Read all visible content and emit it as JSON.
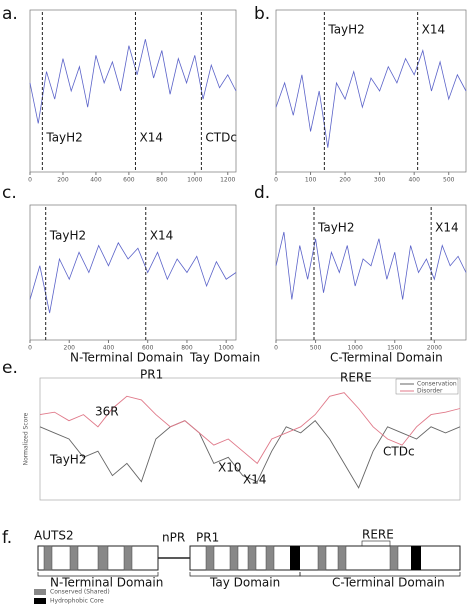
{
  "chart_data": [
    {
      "type": "line",
      "panel": "a.",
      "x": [
        0,
        50,
        100,
        150,
        200,
        250,
        300,
        350,
        400,
        450,
        500,
        550,
        600,
        650,
        700,
        750,
        800,
        850,
        900,
        950,
        1000,
        1050,
        1100,
        1150,
        1200,
        1250
      ],
      "xlim": [
        0,
        1250
      ],
      "xticks": [
        0,
        200,
        400,
        600,
        800,
        1000,
        1200
      ],
      "ylim": [
        0,
        1
      ],
      "series": [
        {
          "color": "#5b63c9",
          "values": [
            0.55,
            0.3,
            0.62,
            0.45,
            0.7,
            0.5,
            0.65,
            0.4,
            0.72,
            0.55,
            0.68,
            0.5,
            0.78,
            0.6,
            0.82,
            0.58,
            0.75,
            0.48,
            0.7,
            0.55,
            0.72,
            0.45,
            0.66,
            0.52,
            0.6,
            0.5
          ]
        }
      ],
      "markers": [
        {
          "label": "TayH2",
          "x": 75
        },
        {
          "label": "X14",
          "x": 640
        },
        {
          "label": "CTDc",
          "x": 1040
        }
      ]
    },
    {
      "type": "line",
      "panel": "b.",
      "x": [
        0,
        25,
        50,
        75,
        100,
        125,
        150,
        175,
        200,
        225,
        250,
        275,
        300,
        325,
        350,
        375,
        400,
        425,
        450,
        475,
        500,
        525,
        550
      ],
      "xlim": [
        0,
        550
      ],
      "xticks": [
        0,
        100,
        200,
        300,
        400,
        500
      ],
      "ylim": [
        0,
        1
      ],
      "series": [
        {
          "color": "#5b63c9",
          "values": [
            0.4,
            0.55,
            0.35,
            0.6,
            0.25,
            0.5,
            0.15,
            0.55,
            0.45,
            0.62,
            0.4,
            0.58,
            0.5,
            0.65,
            0.55,
            0.7,
            0.6,
            0.75,
            0.5,
            0.68,
            0.45,
            0.6,
            0.5
          ]
        }
      ],
      "markers": [
        {
          "label": "TayH2",
          "x": 140
        },
        {
          "label": "X14",
          "x": 410
        }
      ]
    },
    {
      "type": "line",
      "panel": "c.",
      "x": [
        0,
        50,
        100,
        150,
        200,
        250,
        300,
        350,
        400,
        450,
        500,
        550,
        600,
        650,
        700,
        750,
        800,
        850,
        900,
        950,
        1000,
        1050
      ],
      "xlim": [
        0,
        1050
      ],
      "xticks": [
        0,
        200,
        400,
        600,
        800,
        1000
      ],
      "ylim": [
        0,
        1
      ],
      "series": [
        {
          "color": "#5b63c9",
          "values": [
            0.3,
            0.55,
            0.2,
            0.6,
            0.45,
            0.65,
            0.5,
            0.7,
            0.55,
            0.72,
            0.6,
            0.68,
            0.5,
            0.65,
            0.45,
            0.6,
            0.5,
            0.62,
            0.4,
            0.58,
            0.45,
            0.5
          ]
        }
      ],
      "markers": [
        {
          "label": "TayH2",
          "x": 80
        },
        {
          "label": "X14",
          "x": 590
        }
      ]
    },
    {
      "type": "line",
      "panel": "d.",
      "x": [
        0,
        100,
        200,
        300,
        400,
        500,
        600,
        700,
        800,
        900,
        1000,
        1100,
        1200,
        1300,
        1400,
        1500,
        1600,
        1700,
        1800,
        1900,
        2000,
        2100,
        2200,
        2300,
        2400
      ],
      "xlim": [
        0,
        2400
      ],
      "xticks": [
        0,
        500,
        1000,
        1500,
        2000
      ],
      "ylim": [
        0,
        1
      ],
      "series": [
        {
          "color": "#5b63c9",
          "values": [
            0.55,
            0.8,
            0.3,
            0.7,
            0.45,
            0.75,
            0.35,
            0.65,
            0.5,
            0.7,
            0.4,
            0.6,
            0.55,
            0.75,
            0.45,
            0.65,
            0.3,
            0.7,
            0.5,
            0.6,
            0.45,
            0.7,
            0.55,
            0.62,
            0.5
          ]
        }
      ],
      "markers": [
        {
          "label": "TayH2",
          "x": 480
        },
        {
          "label": "X14",
          "x": 1960
        }
      ]
    },
    {
      "type": "multiline",
      "panel": "e.",
      "y_label": "Normalized Score",
      "ylim": [
        0,
        1
      ],
      "series": [
        {
          "name": "Conservation",
          "color": "#666666",
          "values": [
            0.6,
            0.55,
            0.5,
            0.35,
            0.4,
            0.2,
            0.3,
            0.15,
            0.5,
            0.6,
            0.65,
            0.55,
            0.3,
            0.35,
            0.2,
            0.15,
            0.4,
            0.6,
            0.55,
            0.65,
            0.5,
            0.3,
            0.1,
            0.4,
            0.6,
            0.55,
            0.5,
            0.6,
            0.55,
            0.6
          ]
        },
        {
          "name": "Disorder",
          "color": "#e07a8a",
          "values": [
            0.7,
            0.72,
            0.65,
            0.7,
            0.6,
            0.75,
            0.85,
            0.82,
            0.7,
            0.6,
            0.65,
            0.55,
            0.45,
            0.5,
            0.4,
            0.3,
            0.5,
            0.55,
            0.6,
            0.7,
            0.85,
            0.88,
            0.75,
            0.6,
            0.5,
            0.45,
            0.6,
            0.7,
            0.72,
            0.75
          ]
        }
      ],
      "annotations": [
        "N-Terminal Domain",
        "Tay Domain",
        "C-Terminal Domain",
        "PR1",
        "RERE",
        "36R",
        "TayH2",
        "X10",
        "X14",
        "CTDc"
      ]
    }
  ],
  "diagram": {
    "panel": "f.",
    "protein": "AUTS2",
    "labels": [
      "nPR",
      "PR1",
      "RERE"
    ],
    "domains": [
      "N-Terminal Domain",
      "Tay Domain",
      "C-Terminal Domain"
    ],
    "legend": [
      "Conserved (Shared)",
      "Hydrophobic Core"
    ]
  }
}
